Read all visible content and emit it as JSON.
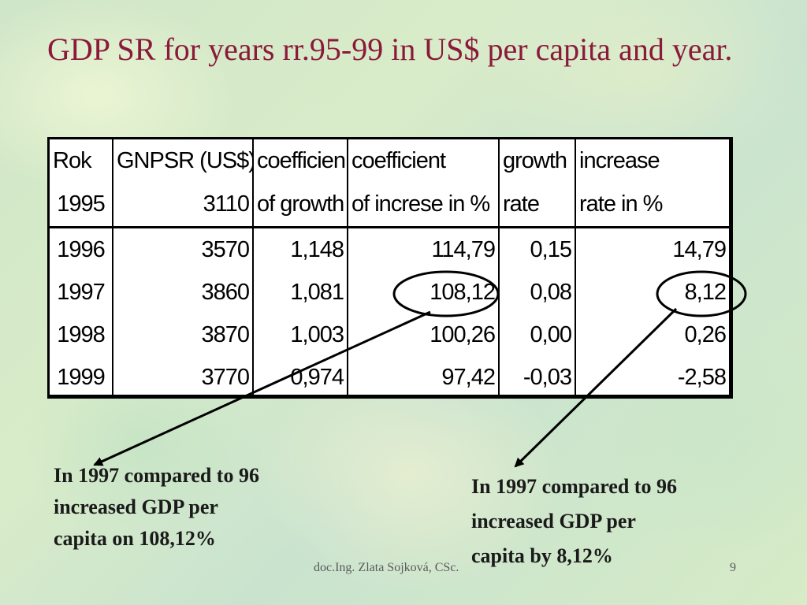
{
  "slide": {
    "title": "GDP SR for years rr.95-99 in US$ per capita and year.",
    "footer_author": "doc.Ing. Zlata Sojková, CSc.",
    "page_number": "9"
  },
  "table": {
    "header_top": [
      "Rok",
      "GNPSR (US$)",
      "coefficien",
      "coefficient",
      "growth",
      "increase"
    ],
    "header_bottom": [
      "1995",
      "3110",
      "of growth",
      "of increse in %",
      "rate",
      "rate in %"
    ],
    "rows": [
      [
        "1996",
        "3570",
        "1,148",
        "114,79",
        "0,15",
        "14,79"
      ],
      [
        "1997",
        "3860",
        "1,081",
        "108,12",
        "0,08",
        "8,12"
      ],
      [
        "1998",
        "3870",
        "1,003",
        "100,26",
        "0,00",
        "0,26"
      ],
      [
        "1999",
        "3770",
        "0,974",
        "97,42",
        "-0,03",
        "-2,58"
      ]
    ]
  },
  "annotations": {
    "left": [
      "In 1997 compared to 96",
      "increased GDP per",
      "capita on 108,12%"
    ],
    "right": [
      "In 1997 compared to 96",
      "increased GDP per",
      "capita by 8,12%"
    ]
  }
}
